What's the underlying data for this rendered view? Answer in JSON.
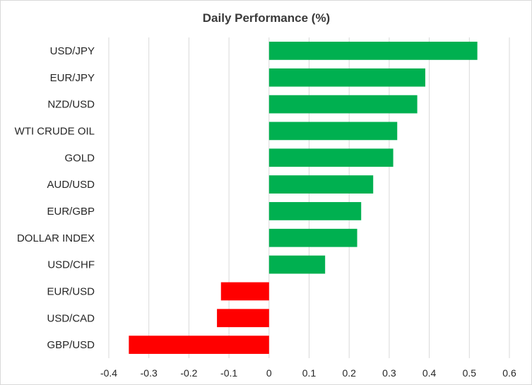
{
  "chart_data": {
    "type": "bar",
    "orientation": "horizontal",
    "title": "Daily Performance (%)",
    "xlabel": "",
    "ylabel": "",
    "categories": [
      "USD/JPY",
      "EUR/JPY",
      "NZD/USD",
      "WTI CRUDE OIL",
      "GOLD",
      "AUD/USD",
      "EUR/GBP",
      "DOLLAR INDEX",
      "USD/CHF",
      "EUR/USD",
      "USD/CAD",
      "GBP/USD"
    ],
    "values": [
      0.52,
      0.39,
      0.37,
      0.32,
      0.31,
      0.26,
      0.23,
      0.22,
      0.14,
      -0.12,
      -0.13,
      -0.35
    ],
    "xlim": [
      -0.4,
      0.6
    ],
    "x_ticks": [
      "-0.4",
      "-0.3",
      "-0.2",
      "-0.1",
      "0",
      "0.1",
      "0.2",
      "0.3",
      "0.4",
      "0.5",
      "0.6"
    ],
    "grid": "vertical",
    "legend": "none",
    "colors": {
      "positive": "#00b050",
      "negative": "#ff0000"
    }
  }
}
